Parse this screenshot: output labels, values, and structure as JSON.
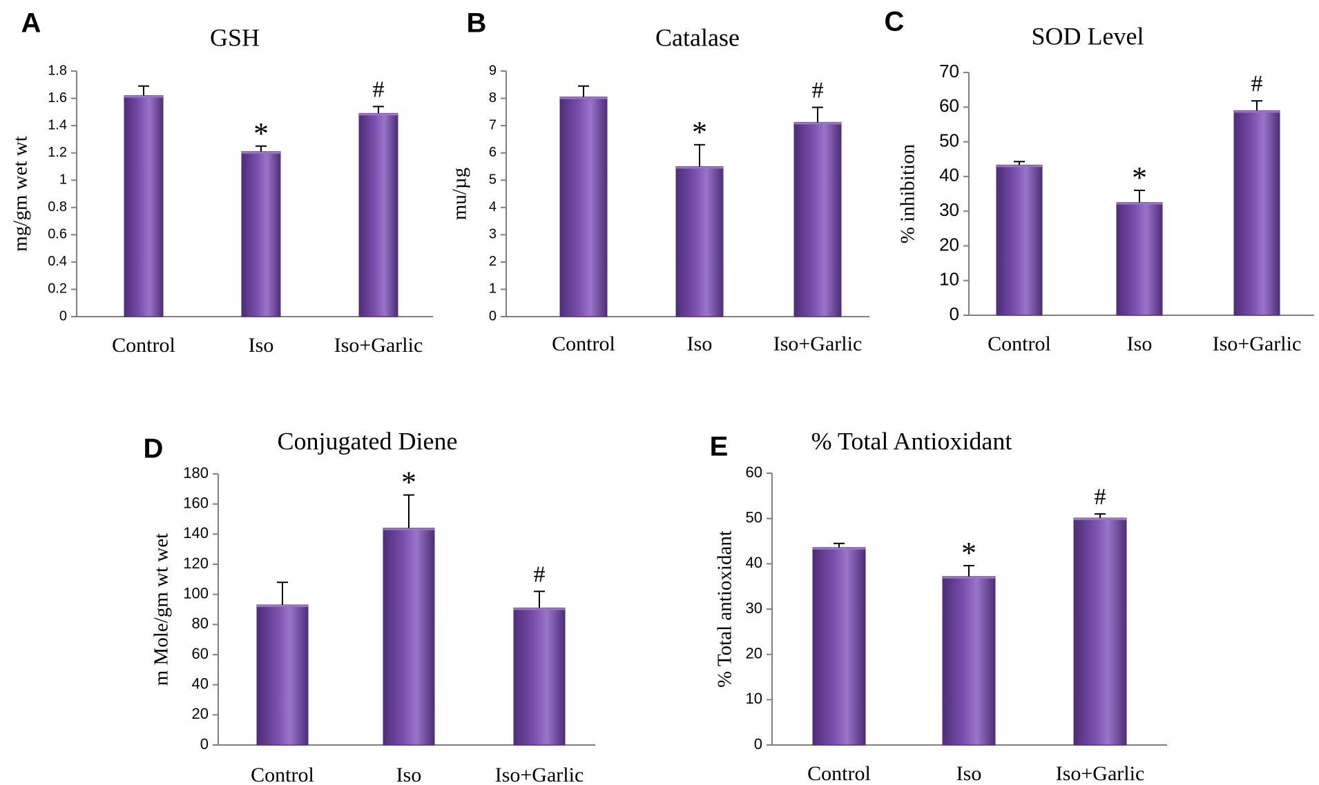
{
  "figure": {
    "colors": {
      "bar": "#7a4fae",
      "bar_dark": "#4e2d78",
      "bar_light": "#9b74c9",
      "axis": "#7f7f7f"
    }
  },
  "chart_data": [
    {
      "panel": "A",
      "type": "bar",
      "title": "GSH",
      "ylabel": "mg/gm wet wt",
      "categories": [
        "Control",
        "Iso",
        "Iso+Garlic"
      ],
      "values": [
        1.62,
        1.21,
        1.49
      ],
      "errors": [
        0.07,
        0.04,
        0.05
      ],
      "annotations": [
        "",
        "*",
        "#"
      ],
      "ylim": [
        0,
        1.8
      ],
      "yticks": [
        "0",
        "0.2",
        "0.4",
        "0.6",
        "0.8",
        "1",
        "1.2",
        "1.4",
        "1.6",
        "1.8"
      ]
    },
    {
      "panel": "B",
      "type": "bar",
      "title": "Catalase",
      "ylabel": "mu/µg",
      "categories": [
        "Control",
        "Iso",
        "Iso+Garlic"
      ],
      "values": [
        8.05,
        5.5,
        7.12
      ],
      "errors": [
        0.4,
        0.8,
        0.55
      ],
      "annotations": [
        "",
        "*",
        "#"
      ],
      "ylim": [
        0,
        9
      ],
      "yticks": [
        "0",
        "1",
        "2",
        "3",
        "4",
        "5",
        "6",
        "7",
        "8",
        "9"
      ]
    },
    {
      "panel": "C",
      "type": "bar",
      "title": "SOD Level",
      "ylabel": "% inhibition",
      "categories": [
        "Control",
        "Iso",
        "Iso+Garlic"
      ],
      "values": [
        43.3,
        32.5,
        59.0
      ],
      "errors": [
        1.0,
        3.5,
        2.8
      ],
      "annotations": [
        "",
        "*",
        "#"
      ],
      "ylim": [
        0,
        70
      ],
      "yticks": [
        "0",
        "10",
        "20",
        "30",
        "40",
        "50",
        "60",
        "70"
      ]
    },
    {
      "panel": "D",
      "type": "bar",
      "title": "Conjugated Diene",
      "ylabel": "m Mole/gm wt wet",
      "categories": [
        "Control",
        "Iso",
        "Iso+Garlic"
      ],
      "values": [
        93,
        144,
        91
      ],
      "errors": [
        15,
        22,
        11
      ],
      "annotations": [
        "",
        "*",
        "#"
      ],
      "ylim": [
        0,
        180
      ],
      "yticks": [
        "0",
        "20",
        "40",
        "60",
        "80",
        "100",
        "120",
        "140",
        "160",
        "180"
      ]
    },
    {
      "panel": "E",
      "type": "bar",
      "title": "% Total Antioxidant",
      "ylabel": "% Total antioxidant",
      "categories": [
        "Control",
        "Iso",
        "Iso+Garlic"
      ],
      "values": [
        43.6,
        37.2,
        50.1
      ],
      "errors": [
        0.9,
        2.4,
        0.9
      ],
      "annotations": [
        "",
        "*",
        "#"
      ],
      "ylim": [
        0,
        60
      ],
      "yticks": [
        "0",
        "10",
        "20",
        "30",
        "40",
        "50",
        "60"
      ]
    }
  ]
}
